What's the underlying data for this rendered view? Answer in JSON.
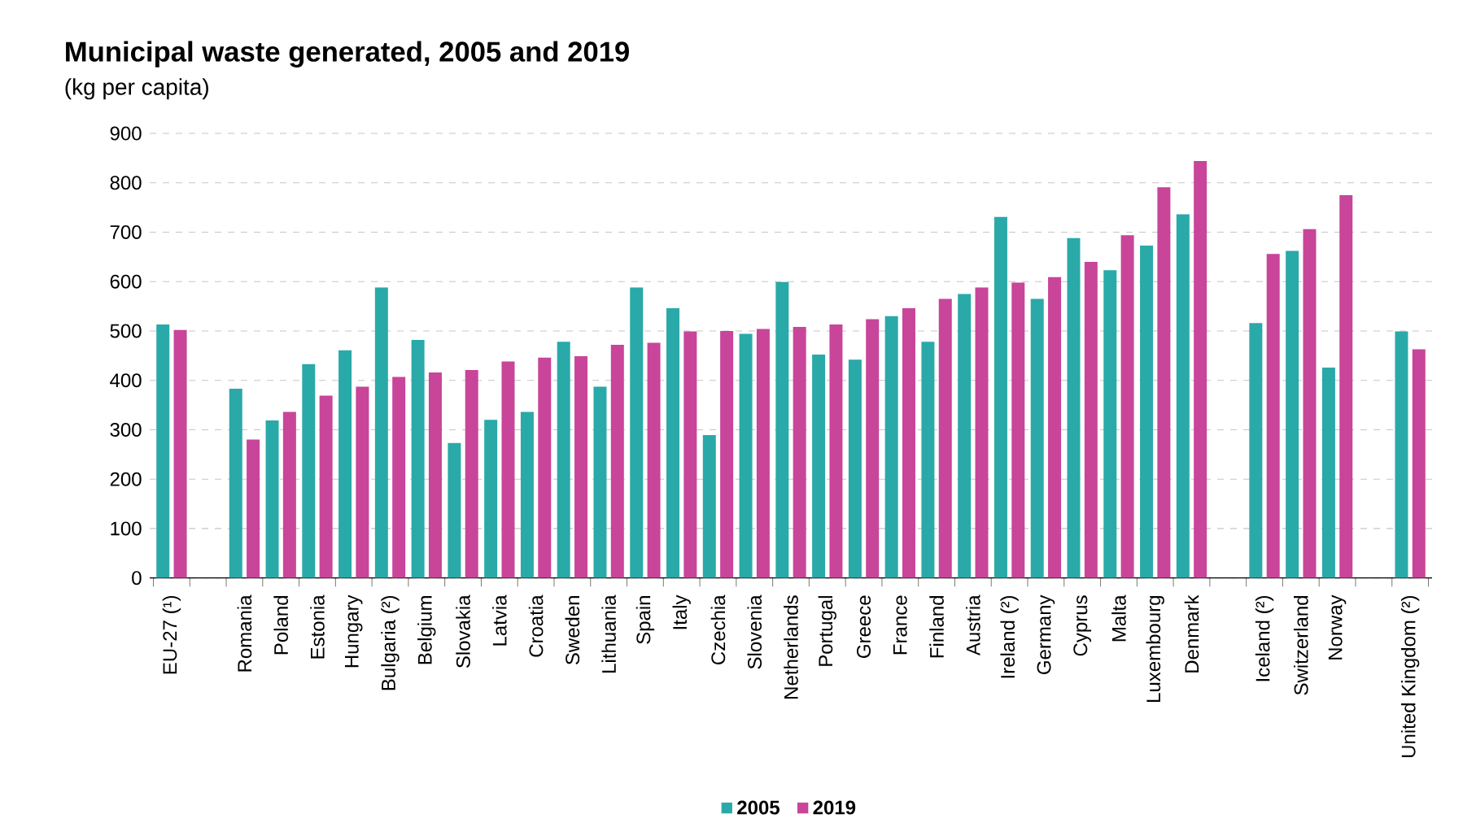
{
  "chart_data": {
    "type": "bar",
    "title": "Municipal waste generated, 2005 and 2019",
    "subtitle": "(kg per capita)",
    "categories": [
      "EU-27 (¹)",
      null,
      "Romania",
      "Poland",
      "Estonia",
      "Hungary",
      "Bulgaria (²)",
      "Belgium",
      "Slovakia",
      "Latvia",
      "Croatia",
      "Sweden",
      "Lithuania",
      "Spain",
      "Italy",
      "Czechia",
      "Slovenia",
      "Netherlands",
      "Portugal",
      "Greece",
      "France",
      "Finland",
      "Austria",
      "Ireland (²)",
      "Germany",
      "Cyprus",
      "Malta",
      "Luxembourg",
      "Denmark",
      null,
      "Iceland (²)",
      "Switzerland",
      "Norway",
      null,
      "United Kingdom (²)"
    ],
    "series": [
      {
        "name": "2005",
        "color": "#2aa9a9",
        "values": [
          513,
          null,
          383,
          319,
          433,
          461,
          588,
          482,
          273,
          320,
          336,
          478,
          387,
          588,
          546,
          289,
          494,
          599,
          452,
          442,
          530,
          478,
          575,
          731,
          565,
          688,
          623,
          673,
          736,
          null,
          516,
          662,
          426,
          null,
          499
        ]
      },
      {
        "name": "2019",
        "color": "#c8459a",
        "values": [
          502,
          null,
          280,
          336,
          369,
          387,
          407,
          416,
          421,
          438,
          446,
          449,
          472,
          476,
          499,
          500,
          504,
          508,
          513,
          524,
          546,
          565,
          588,
          598,
          609,
          640,
          694,
          791,
          844,
          null,
          656,
          706,
          775,
          null,
          463
        ]
      }
    ],
    "ylim": [
      0,
      900
    ],
    "yticks": [
      0,
      100,
      200,
      300,
      400,
      500,
      600,
      700,
      800,
      900
    ],
    "grid": "y",
    "legend": "bottom"
  }
}
